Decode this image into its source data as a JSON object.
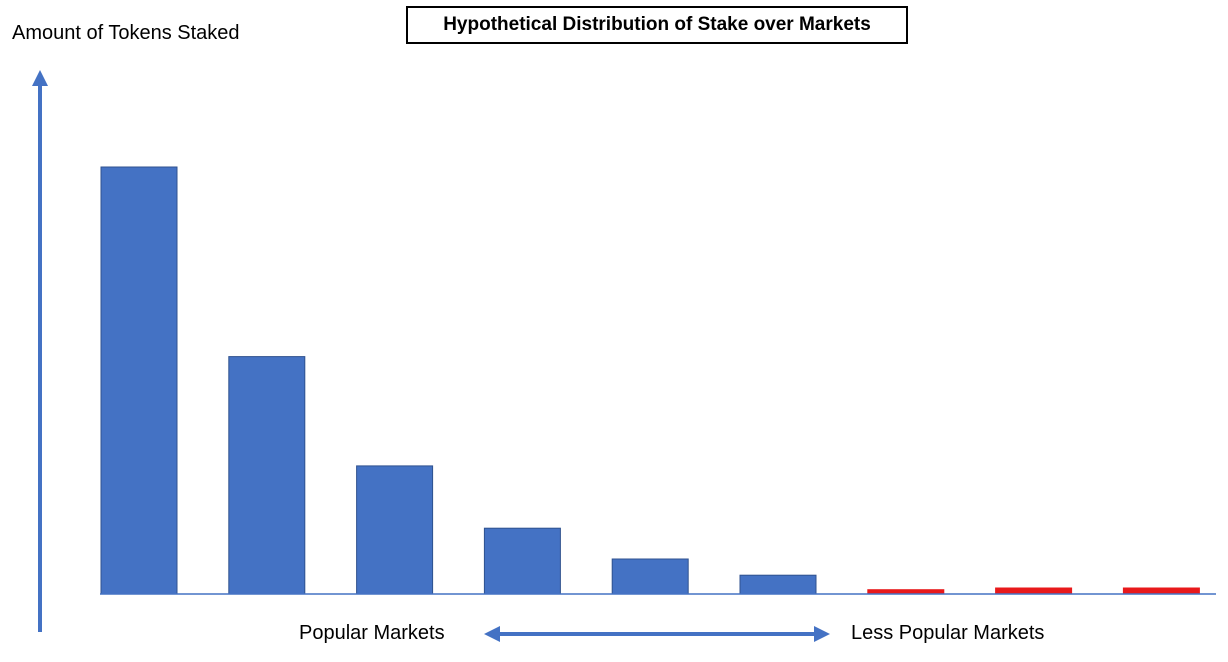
{
  "chart_data": {
    "type": "bar",
    "title": "Hypothetical Distribution of Stake over Markets",
    "ylabel": "Amount of Tokens Staked",
    "xlabel_left": "Popular Markets",
    "xlabel_right": "Less Popular Markets",
    "ylim": [
      0,
      100
    ],
    "grid": false,
    "legend": "none",
    "values": [
      100,
      55.6,
      30,
      15.4,
      8.2,
      4.4,
      1.0,
      1.4,
      1.4
    ],
    "colors": [
      "#4472C4",
      "#4472C4",
      "#4472C4",
      "#4472C4",
      "#4472C4",
      "#4472C4",
      "#E8191B",
      "#E8191B",
      "#E8191B"
    ],
    "axis_color": "#4472C4"
  }
}
